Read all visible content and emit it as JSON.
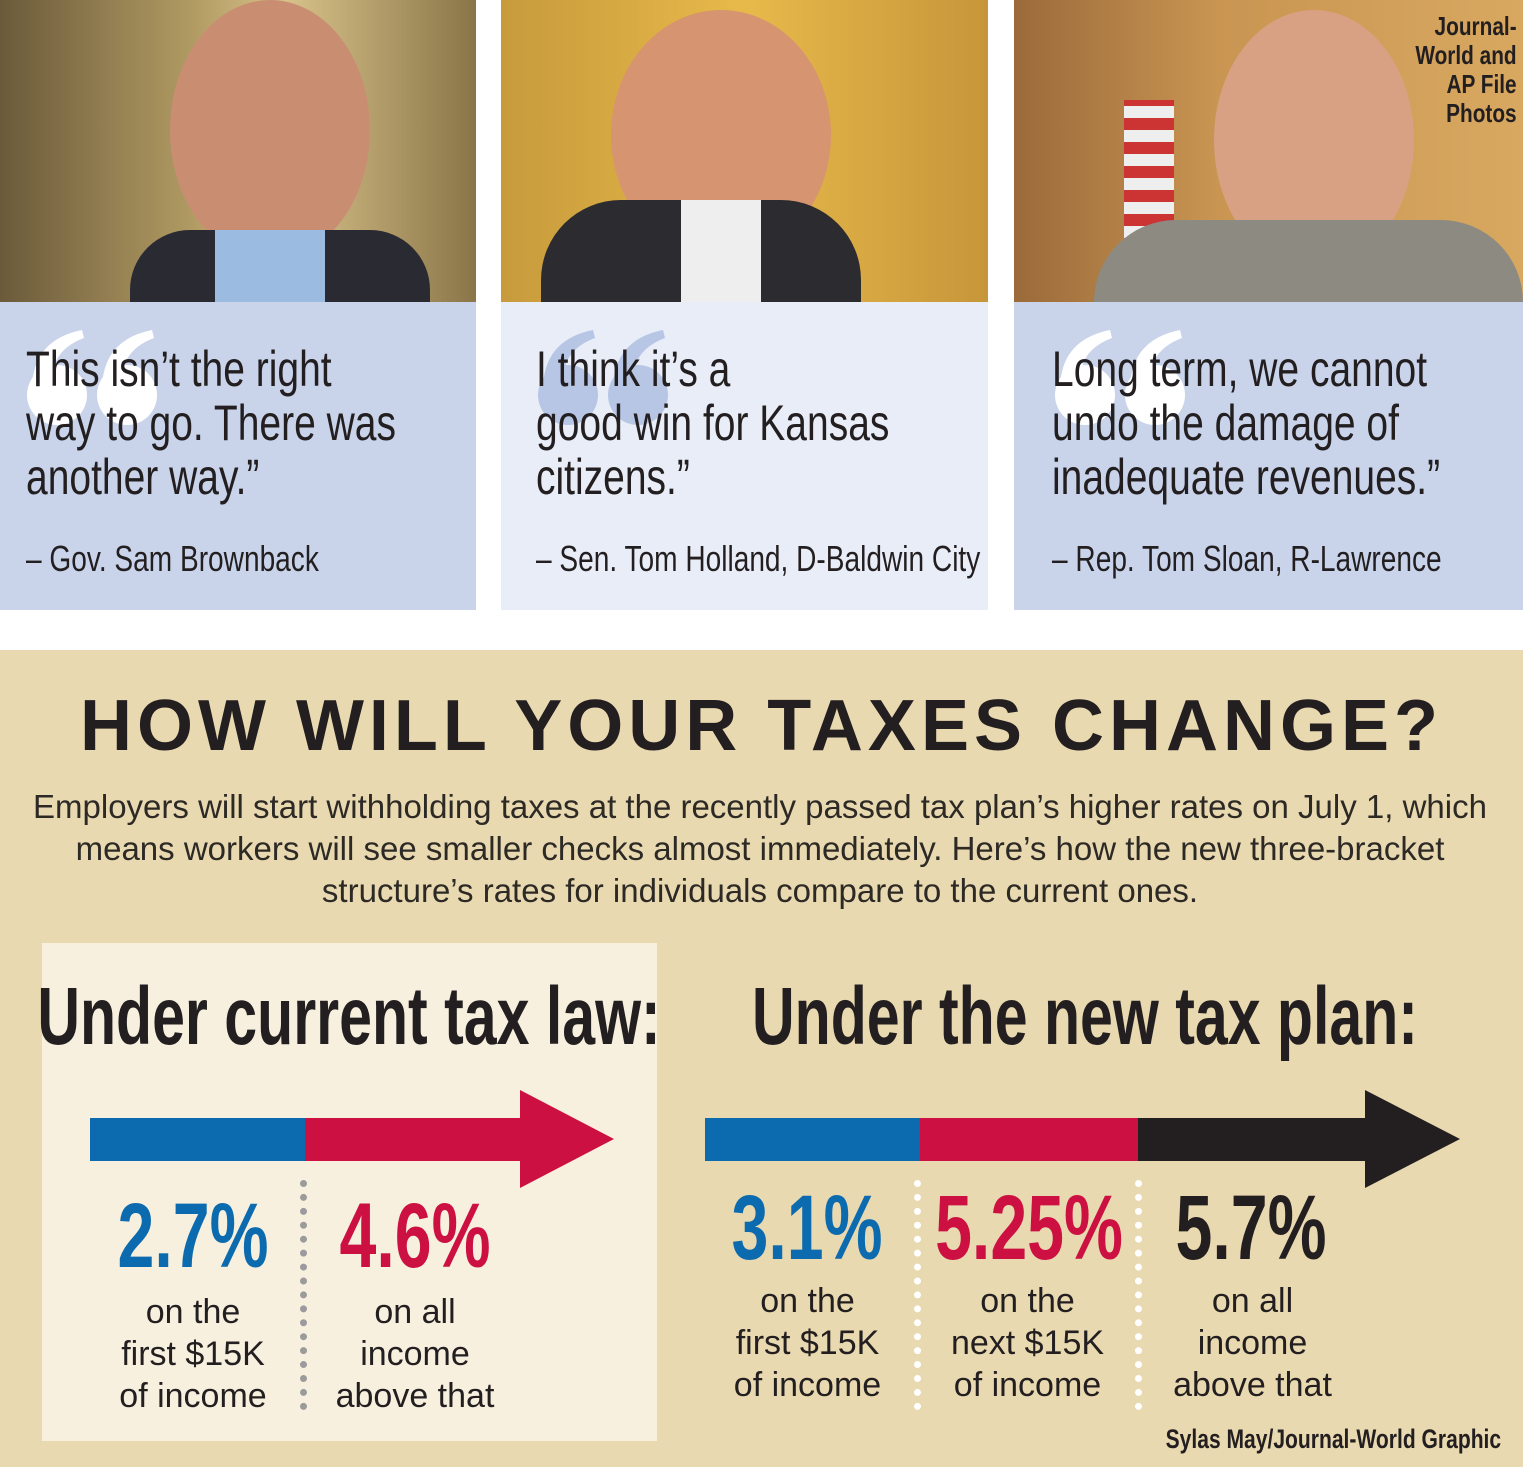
{
  "photos": {
    "credit": "Journal-\nWorld and\nAP File\nPhotos"
  },
  "quotes": [
    {
      "text": "This isn’t the right\nway to go. There was\nanother way.”",
      "attribution": "– Gov. Sam Brownback"
    },
    {
      "text": "I think it’s a\ngood win for Kansas\ncitizens.”",
      "attribution": "– Sen. Tom Holland, D-Baldwin City"
    },
    {
      "text": "Long term, we cannot\nundo the damage of\ninadequate revenues.”",
      "attribution": "– Rep. Tom Sloan, R-Lawrence"
    }
  ],
  "title": "HOW WILL YOUR TAXES CHANGE?",
  "intro": "Employers will start withholding taxes at the recently passed tax plan’s higher rates on July 1, which means workers will see smaller checks almost immediately. Here’s how the new three-bracket structure’s rates for individuals compare to the current ones.",
  "current": {
    "heading": "Under current tax law:",
    "brackets": [
      {
        "rate": "2.7%",
        "desc": "on the\nfirst $15K\nof income",
        "color": "#0c6baf"
      },
      {
        "rate": "4.6%",
        "desc": "on all\nincome\nabove that",
        "color": "#cc1041"
      }
    ]
  },
  "new": {
    "heading": "Under the new tax plan:",
    "brackets": [
      {
        "rate": "3.1%",
        "desc": "on the\nfirst $15K\nof income",
        "color": "#0c6baf"
      },
      {
        "rate": "5.25%",
        "desc": "on the\nnext $15K\nof income",
        "color": "#cc1041"
      },
      {
        "rate": "5.7%",
        "desc": "on all\nincome\nabove that",
        "color": "#231f20"
      }
    ]
  },
  "byline": "Sylas May/Journal-World Graphic",
  "colors": {
    "blue": "#0c6baf",
    "red": "#cc1041",
    "black": "#231f20",
    "beige": "#e9d9b0",
    "panel": "#f7f0df"
  }
}
